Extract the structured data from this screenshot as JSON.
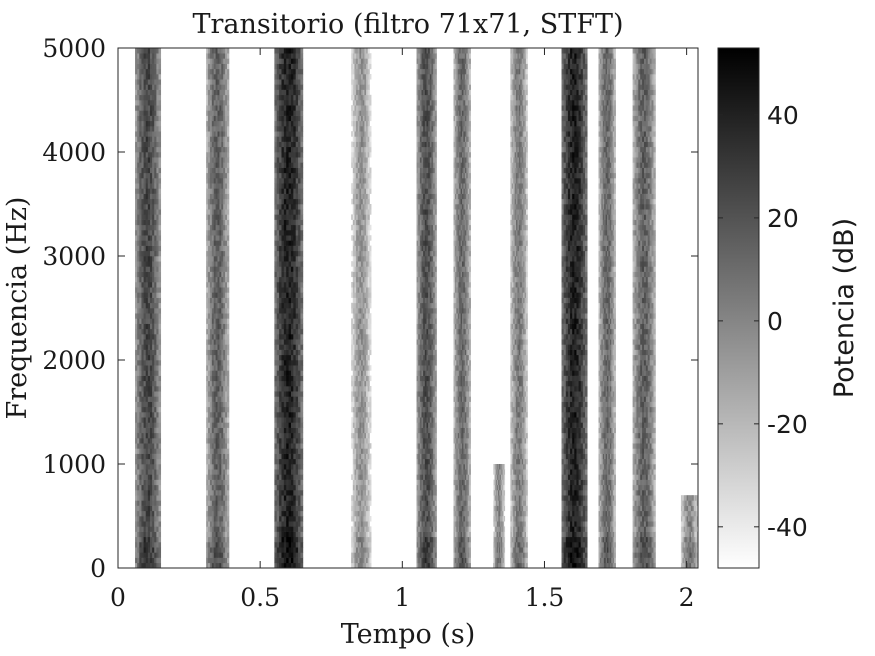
{
  "chart_data": {
    "type": "heatmap",
    "title": "Transitorio (filtro 71x71, STFT)",
    "xlabel": "Tempo (s)",
    "ylabel": "Frequencia (Hz)",
    "colorbar_label": "Potencia (dB)",
    "colormap": "gray_inverted",
    "xlim": [
      0,
      2.04
    ],
    "ylim": [
      0,
      5000
    ],
    "clim": [
      -48,
      53
    ],
    "x_ticks": [
      "0",
      "0.5",
      "1",
      "1.5",
      "2"
    ],
    "x_tick_values": [
      0,
      0.5,
      1,
      1.5,
      2
    ],
    "y_ticks": [
      "0",
      "1000",
      "2000",
      "3000",
      "4000",
      "5000"
    ],
    "y_tick_values": [
      0,
      1000,
      2000,
      3000,
      4000,
      5000
    ],
    "colorbar_ticks": [
      "40",
      "20",
      "0",
      "-20",
      "-40"
    ],
    "colorbar_tick_values": [
      40,
      20,
      0,
      -20,
      -40
    ],
    "events": [
      {
        "t_start": 0.06,
        "t_end": 0.15,
        "f_max": 5000,
        "peak_db": 25
      },
      {
        "t_start": 0.31,
        "t_end": 0.39,
        "f_max": 5000,
        "peak_db": 15
      },
      {
        "t_start": 0.55,
        "t_end": 0.65,
        "f_max": 5000,
        "peak_db": 40
      },
      {
        "t_start": 0.82,
        "t_end": 0.89,
        "f_max": 5000,
        "peak_db": -5
      },
      {
        "t_start": 1.05,
        "t_end": 1.12,
        "f_max": 5000,
        "peak_db": 22
      },
      {
        "t_start": 1.18,
        "t_end": 1.24,
        "f_max": 5000,
        "peak_db": 12
      },
      {
        "t_start": 1.32,
        "t_end": 1.36,
        "f_max": 1000,
        "peak_db": 0
      },
      {
        "t_start": 1.38,
        "t_end": 1.44,
        "f_max": 5000,
        "peak_db": 5
      },
      {
        "t_start": 1.56,
        "t_end": 1.65,
        "f_max": 5000,
        "peak_db": 40
      },
      {
        "t_start": 1.69,
        "t_end": 1.75,
        "f_max": 5000,
        "peak_db": 12
      },
      {
        "t_start": 1.81,
        "t_end": 1.89,
        "f_max": 5000,
        "peak_db": 15
      },
      {
        "t_start": 1.98,
        "t_end": 2.04,
        "f_max": 700,
        "peak_db": 0
      }
    ]
  }
}
